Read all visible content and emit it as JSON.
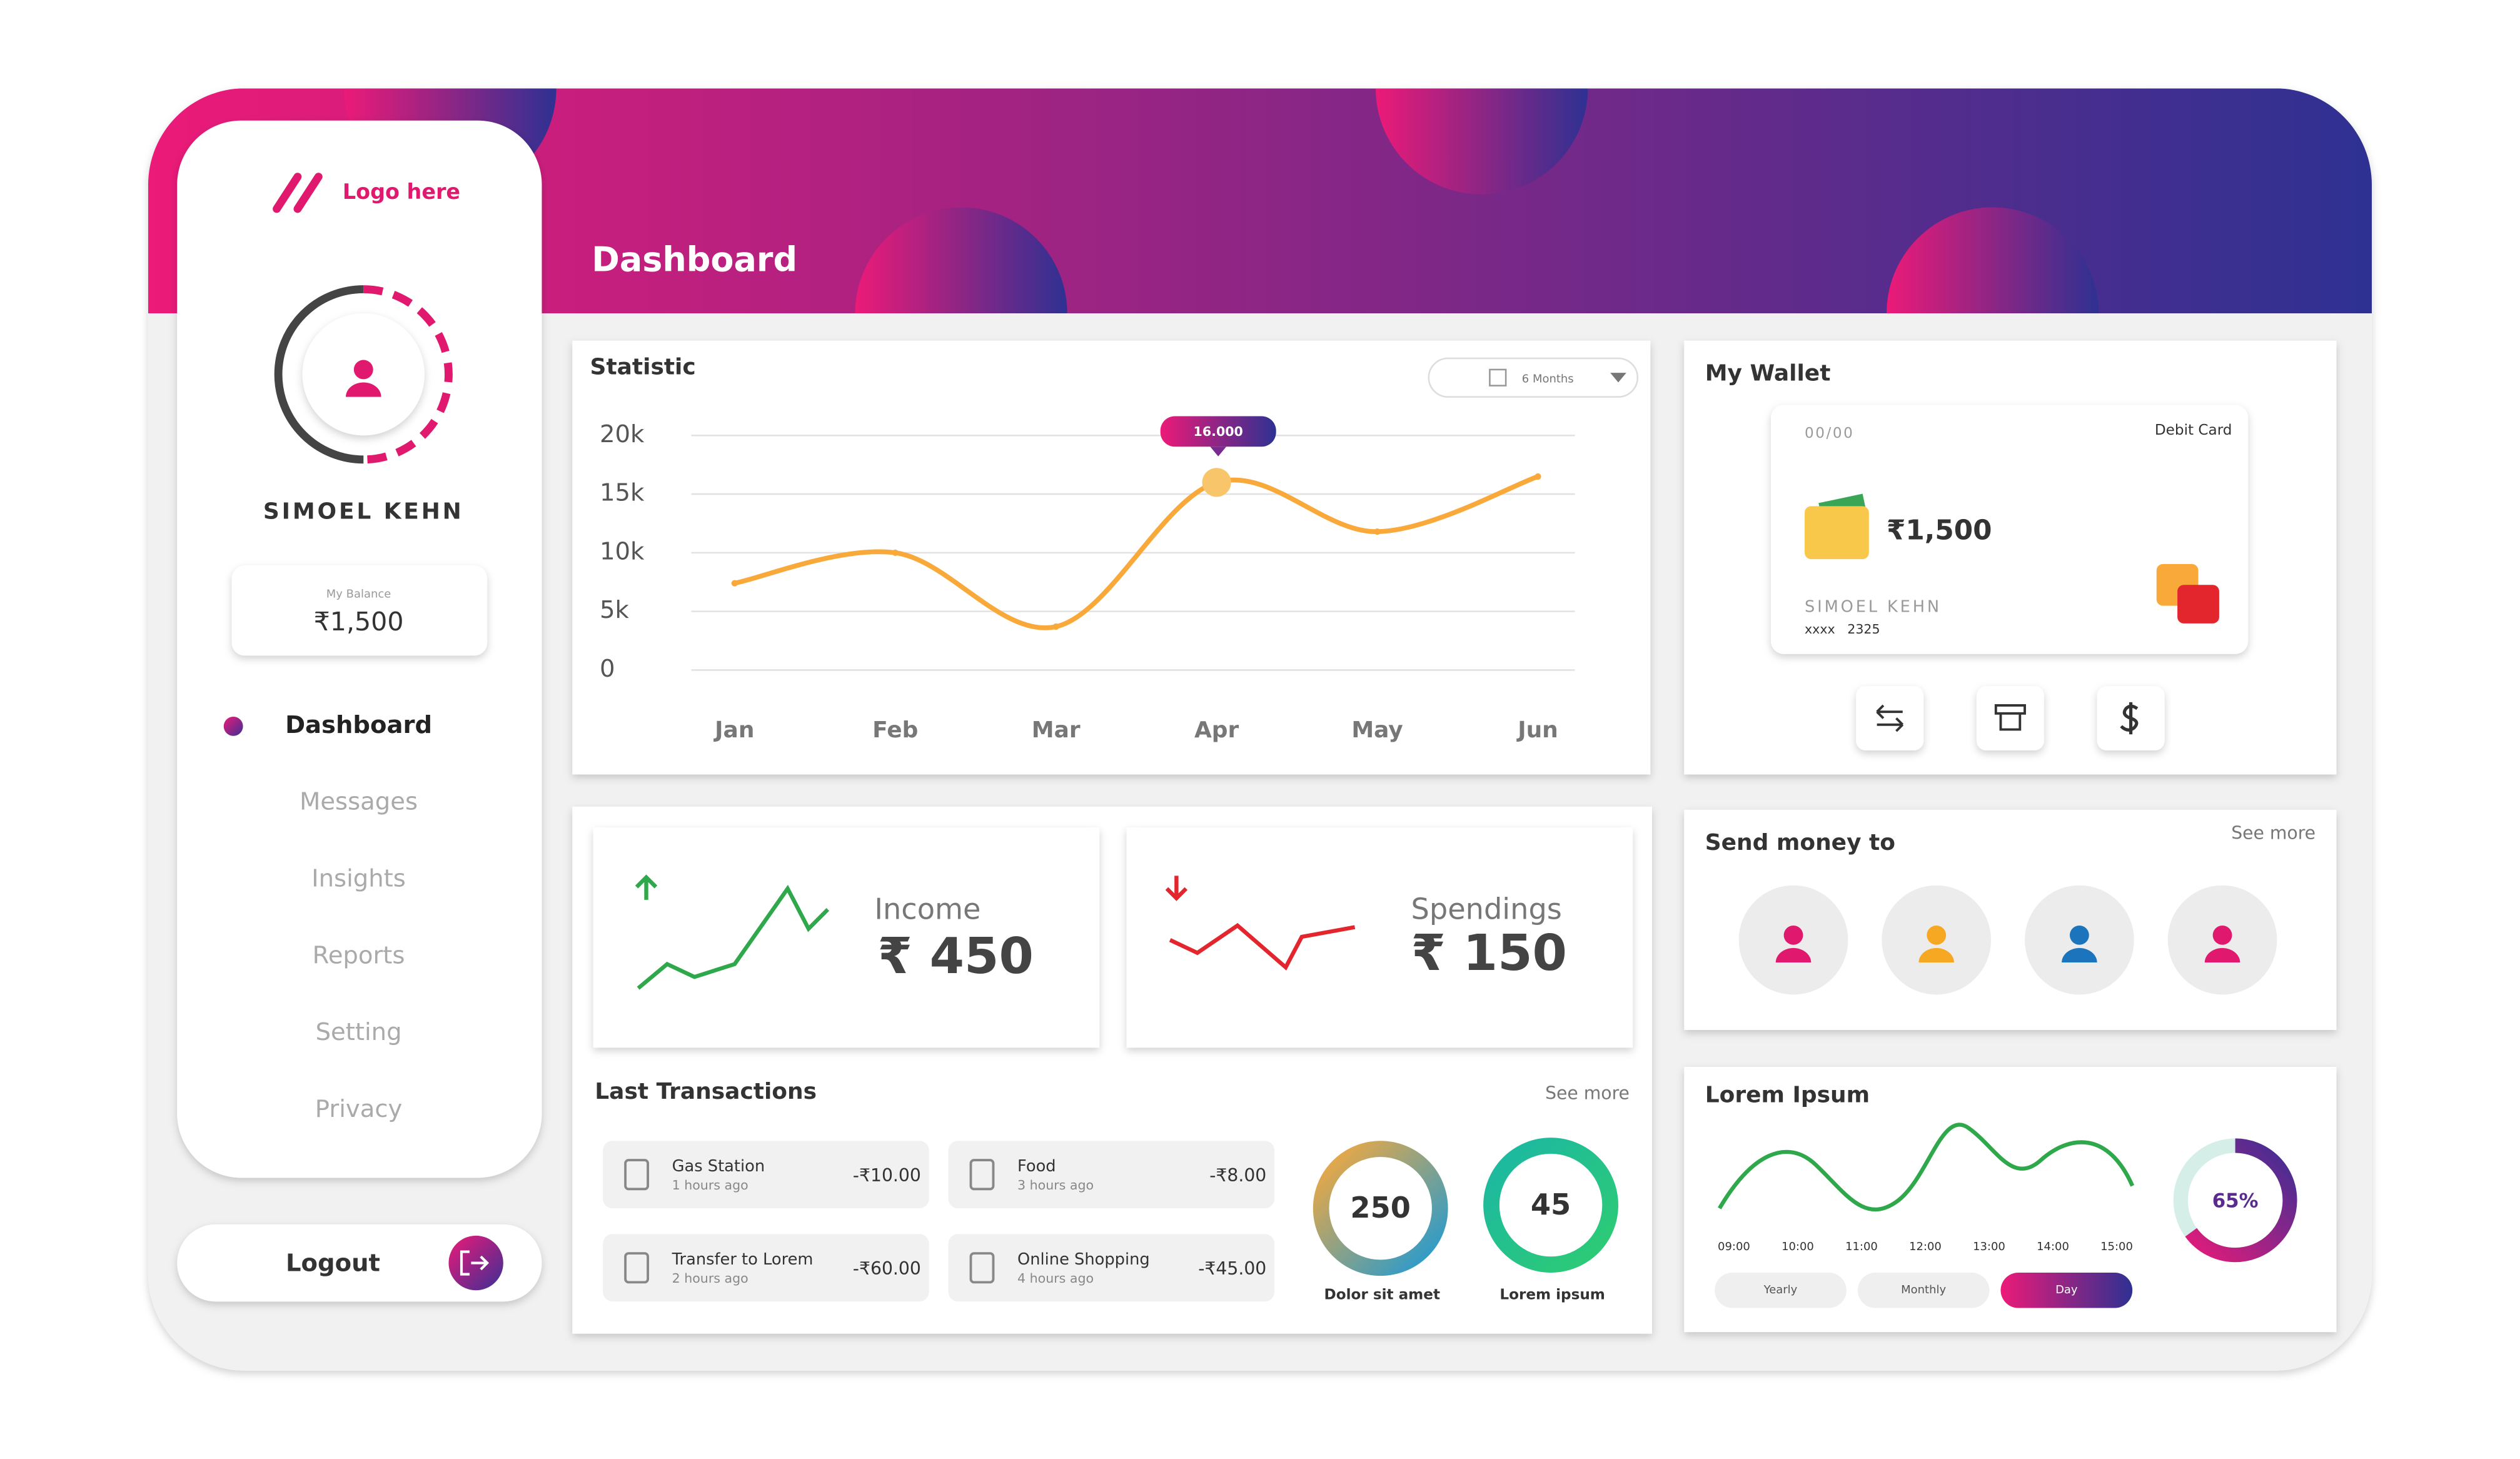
{
  "sidebar": {
    "logo": "Logo here",
    "user": "SIMOEL KEHN",
    "balance_label": "My Balance",
    "balance": "₹1,500",
    "nav": [
      "Dashboard",
      "Messages",
      "Insights",
      "Reports",
      "Setting",
      "Privacy"
    ],
    "logout": "Logout"
  },
  "header": {
    "title": "Dashboard"
  },
  "statistic": {
    "title": "Statistic",
    "filter": "6 Months",
    "type": "line",
    "categories": [
      "Jan",
      "Feb",
      "Mar",
      "Apr",
      "May",
      "Jun"
    ],
    "values": [
      7400,
      10000,
      3700,
      16000,
      11800,
      16500
    ],
    "color": "#f9a93a",
    "ylim": [
      0,
      20000
    ],
    "yticks": [
      0,
      {
        "value": 5000,
        "label": "5k"
      },
      {
        "value": 10000,
        "label": "10k"
      },
      {
        "value": 15000,
        "label": "15k"
      },
      {
        "value": 20000,
        "label": "20k"
      }
    ],
    "grid": true,
    "tooltip": "16.000"
  },
  "wallet": {
    "title": "My Wallet",
    "card_date": "00/00",
    "card_type": "Debit Card",
    "amount": "₹1,500",
    "holder": "SIMOEL KEHN",
    "number": "xxxx   2325"
  },
  "income": {
    "label": "Income",
    "amount": "₹ 450"
  },
  "spendings": {
    "label": "Spendings",
    "amount": "₹ 150"
  },
  "send_money": {
    "title": "Send money to",
    "see_more": "See more",
    "contacts": [
      "#e0196f",
      "#f7a823",
      "#1c75bc",
      "#e0196f"
    ]
  },
  "transactions": {
    "title": "Last Transactions",
    "see_more": "See more",
    "items": [
      {
        "name": "Gas Station",
        "time": "1 hours ago",
        "amount": "-₹10.00"
      },
      {
        "name": "Food",
        "time": "3 hours ago",
        "amount": "-₹8.00"
      },
      {
        "name": "Transfer to Lorem",
        "time": "2 hours ago",
        "amount": "-₹60.00"
      },
      {
        "name": "Online Shopping",
        "time": "4 hours ago",
        "amount": "-₹45.00"
      }
    ]
  },
  "summary": [
    {
      "value": "250",
      "label": "Dolor sit amet"
    },
    {
      "value": "45",
      "label": "Lorem ipsum"
    }
  ],
  "lorem": {
    "title": "Lorem Ipsum",
    "times": [
      "09:00",
      "10:00",
      "11:00",
      "12:00",
      "13:00",
      "14:00",
      "15:00"
    ],
    "tabs": [
      "Yearly",
      "Monthly",
      "Day"
    ],
    "percent": 65,
    "percent_label": "65%"
  }
}
